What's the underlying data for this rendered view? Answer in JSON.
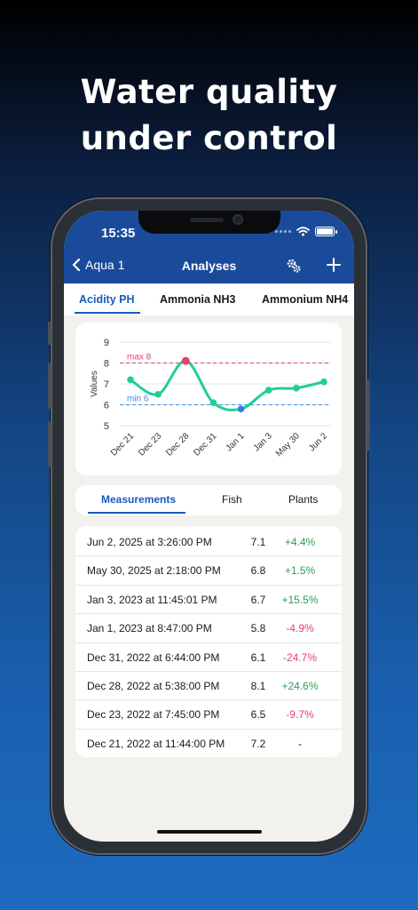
{
  "headline": {
    "line1": "Water quality",
    "line2": "under control"
  },
  "status": {
    "time": "15:35"
  },
  "nav": {
    "back_label": "Aqua 1",
    "title": "Analyses"
  },
  "tabs": [
    "Acidity PH",
    "Ammonia NH3",
    "Ammonium NH4"
  ],
  "chart_data": {
    "type": "line",
    "ylabel": "Values",
    "ylim": [
      5,
      9
    ],
    "yticks": [
      "9",
      "8",
      "7",
      "6",
      "5"
    ],
    "categories": [
      "Dec 21",
      "Dec 23",
      "Dec 28",
      "Dec 31",
      "Jan 1",
      "Jan 3",
      "May 30",
      "Jun 2"
    ],
    "values": [
      7.2,
      6.5,
      8.1,
      6.1,
      5.8,
      6.7,
      6.8,
      7.1
    ],
    "max_line": {
      "label": "max 8",
      "value": 8,
      "color": "#e0456a"
    },
    "min_line": {
      "label": "min 6",
      "value": 6,
      "color": "#3a8ee6"
    },
    "series_color": "#1ecf95",
    "below_min_color": "#3a7be0",
    "above_max_color": "#e0456a",
    "grid": true
  },
  "segments": [
    "Measurements",
    "Fish",
    "Plants"
  ],
  "measurements": [
    {
      "date": "Jun 2, 2025 at 3:26:00 PM",
      "value": "7.1",
      "change": "+4.4%",
      "trend": "up"
    },
    {
      "date": "May 30, 2025 at 2:18:00 PM",
      "value": "6.8",
      "change": "+1.5%",
      "trend": "up"
    },
    {
      "date": "Jan 3, 2023 at 11:45:01 PM",
      "value": "6.7",
      "change": "+15.5%",
      "trend": "up"
    },
    {
      "date": "Jan 1, 2023 at 8:47:00 PM",
      "value": "5.8",
      "change": "-4.9%",
      "trend": "down"
    },
    {
      "date": "Dec 31, 2022 at 6:44:00 PM",
      "value": "6.1",
      "change": "-24.7%",
      "trend": "down"
    },
    {
      "date": "Dec 28, 2022 at 5:38:00 PM",
      "value": "8.1",
      "change": "+24.6%",
      "trend": "up"
    },
    {
      "date": "Dec 23, 2022 at 7:45:00 PM",
      "value": "6.5",
      "change": "-9.7%",
      "trend": "down"
    },
    {
      "date": "Dec 21, 2022 at 11:44:00 PM",
      "value": "7.2",
      "change": "-",
      "trend": "none"
    }
  ],
  "colors": {
    "up": "#2e9a58",
    "down": "#e0456a",
    "none": "#1a1a1a",
    "accent": "#1a5bc0",
    "header": "#1a4b9a"
  }
}
